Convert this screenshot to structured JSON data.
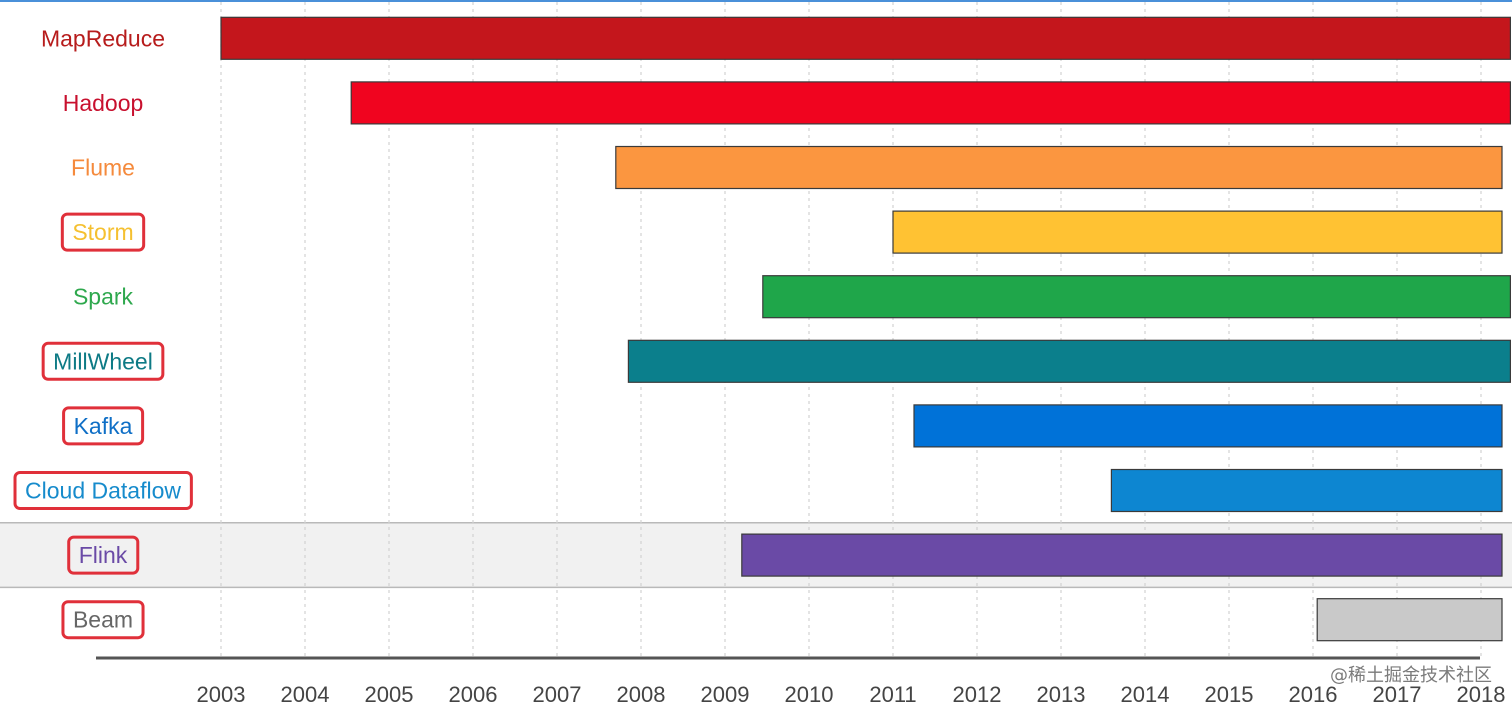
{
  "chart_data": {
    "type": "bar",
    "orientation": "horizontal-timeline",
    "x_ticks": [
      2003,
      2004,
      2005,
      2006,
      2007,
      2008,
      2009,
      2010,
      2011,
      2012,
      2013,
      2014,
      2015,
      2016,
      2017,
      2018
    ],
    "xlim": [
      2003,
      2018.35
    ],
    "grid": "vertical dashed",
    "highlight_row": "Flink",
    "categories": [
      "MapReduce",
      "Hadoop",
      "Flume",
      "Storm",
      "Spark",
      "MillWheel",
      "Kafka",
      "Cloud Dataflow",
      "Flink",
      "Beam"
    ],
    "series": [
      {
        "label": "MapReduce",
        "start": 2003.0,
        "end": 2018.35,
        "color": "#c4161c",
        "label_color": "#b71c1c",
        "boxed": false
      },
      {
        "label": "Hadoop",
        "start": 2004.55,
        "end": 2018.35,
        "color": "#f0041f",
        "label_color": "#c8102e",
        "boxed": false
      },
      {
        "label": "Flume",
        "start": 2007.7,
        "end": 2018.25,
        "color": "#fb9640",
        "label_color": "#f58a3c",
        "boxed": false
      },
      {
        "label": "Storm",
        "start": 2011.0,
        "end": 2018.25,
        "color": "#ffc233",
        "label_color": "#f5c030",
        "boxed": true
      },
      {
        "label": "Spark",
        "start": 2009.45,
        "end": 2018.35,
        "color": "#1fa64a",
        "label_color": "#2ea84d",
        "boxed": false
      },
      {
        "label": "MillWheel",
        "start": 2007.85,
        "end": 2018.35,
        "color": "#0b7f8c",
        "label_color": "#0d7a85",
        "boxed": true
      },
      {
        "label": "Kafka",
        "start": 2011.25,
        "end": 2018.25,
        "color": "#0072d8",
        "label_color": "#0f6fc6",
        "boxed": true
      },
      {
        "label": "Cloud Dataflow",
        "start": 2013.6,
        "end": 2018.25,
        "color": "#0d86d1",
        "label_color": "#168bcc",
        "boxed": true
      },
      {
        "label": "Flink",
        "start": 2009.2,
        "end": 2018.25,
        "color": "#6a4aa6",
        "label_color": "#6a4aa6",
        "boxed": true
      },
      {
        "label": "Beam",
        "start": 2016.05,
        "end": 2018.25,
        "color": "#c9c9c9",
        "label_color": "#666666",
        "boxed": true
      }
    ]
  },
  "watermark": "@稀土掘金技术社区"
}
